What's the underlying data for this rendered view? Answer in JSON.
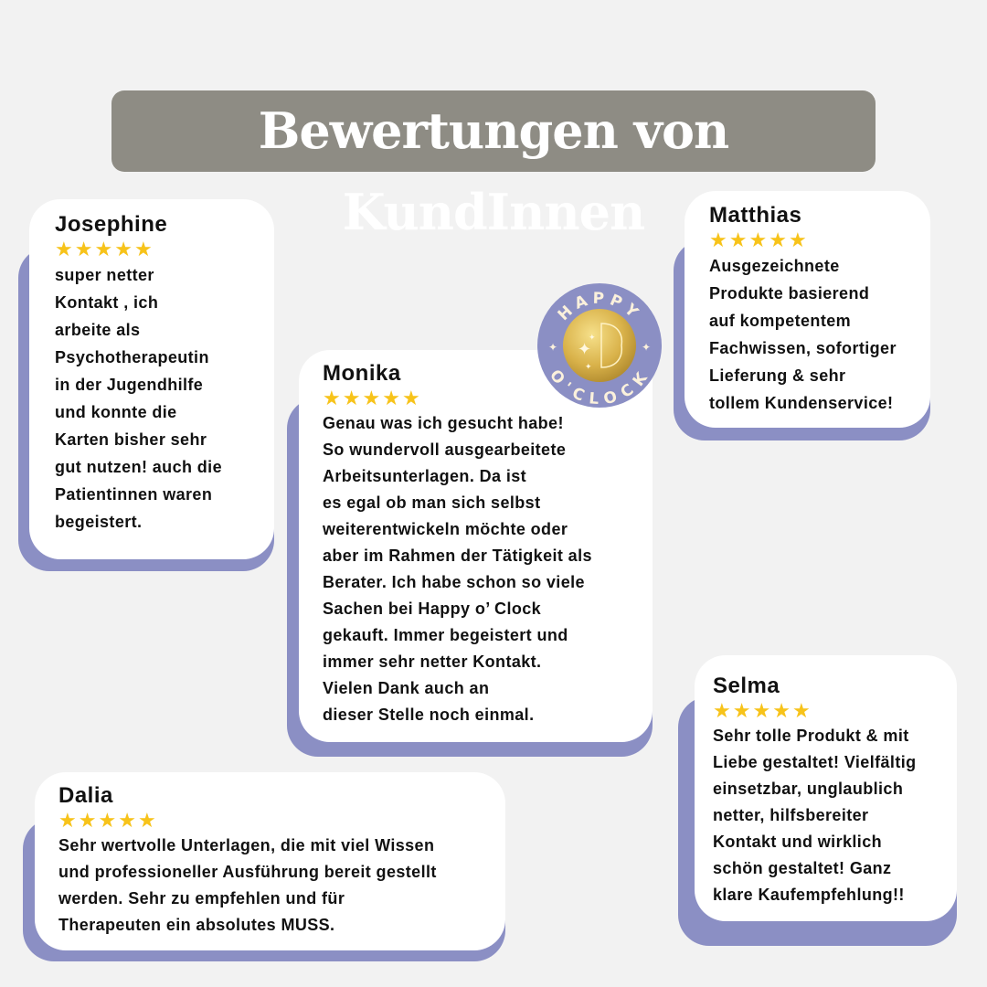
{
  "title": "Bewertungen von KundInnen",
  "colors": {
    "accent": "#8b8fc4",
    "title_bg": "#8e8c84",
    "stars": "#f7c31a"
  },
  "logo": {
    "text": "HAPPY O'CLOCK",
    "icon": "brain-sparkles-icon"
  },
  "reviews": [
    {
      "name": "Josephine",
      "rating": 5,
      "lines": [
        "super netter",
        "Kontakt , ich",
        "arbeite als",
        "Psychotherapeutin",
        "in der Jugendhilfe",
        "und konnte die",
        "Karten bisher sehr",
        "gut nutzen! auch die",
        "Patientinnen waren",
        "begeistert."
      ]
    },
    {
      "name": "Monika",
      "rating": 5,
      "lines": [
        "Genau was ich gesucht habe!",
        "So wundervoll ausgearbeitete",
        "Arbeitsunterlagen. Da ist",
        "es egal ob man sich selbst",
        "weiterentwickeln möchte oder",
        "aber im Rahmen der Tätigkeit als",
        "Berater. Ich habe schon so viele",
        "Sachen bei Happy o’ Clock",
        "gekauft. Immer begeistert und",
        "immer sehr netter Kontakt.",
        "Vielen Dank auch an",
        "dieser Stelle noch einmal."
      ]
    },
    {
      "name": "Matthias",
      "rating": 5,
      "lines": [
        "Ausgezeichnete",
        "Produkte basierend",
        "auf kompetentem",
        "Fachwissen, sofortiger",
        "Lieferung & sehr",
        "tollem Kundenservice!"
      ]
    },
    {
      "name": "Selma",
      "rating": 5,
      "lines": [
        "Sehr tolle Produkt & mit",
        "Liebe gestaltet! Vielfältig",
        "einsetzbar, unglaublich",
        "netter, hilfsbereiter",
        "Kontakt und wirklich",
        "schön gestaltet! Ganz",
        "klare Kaufempfehlung!!"
      ]
    },
    {
      "name": "Dalia",
      "rating": 5,
      "lines": [
        "Sehr wertvolle Unterlagen, die mit viel Wissen",
        "und professioneller Ausführung bereit gestellt",
        "werden. Sehr zu empfehlen und für",
        "Therapeuten ein absolutes MUSS."
      ]
    }
  ]
}
